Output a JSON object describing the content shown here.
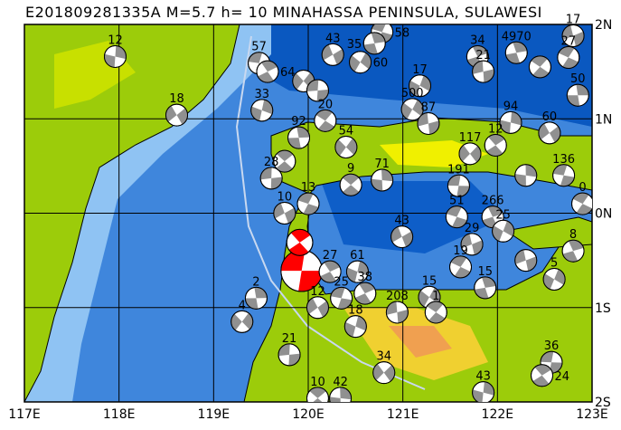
{
  "title": "E201809281335A M=5.7 h= 10 MINAHASSA PENINSULA, SULAWESI",
  "colors": {
    "deep_sea": "#0a58c0",
    "sea": "#3f86dc",
    "shelf": "#8fc3f3",
    "land_low": "#9ccc0a",
    "land_mid": "#f0f000",
    "land_high": "#f0a050",
    "event": "#ff0000",
    "mech": "#909090"
  },
  "axes": {
    "lon_range": [
      117,
      123
    ],
    "lat_range": [
      -2,
      2
    ],
    "lon_labels": [
      "117E",
      "118E",
      "119E",
      "120E",
      "121E",
      "122E",
      "123E"
    ],
    "lat_labels": [
      {
        "lat": 2,
        "label": "2N"
      },
      {
        "lat": 1,
        "label": "1N"
      },
      {
        "lat": 0,
        "label": "0N"
      },
      {
        "lat": -1,
        "label": "1S"
      },
      {
        "lat": -2,
        "label": "2S"
      }
    ]
  },
  "events": [
    {
      "lon": 119.93,
      "lat": -0.61,
      "label": "",
      "main": true,
      "size": 1.9
    },
    {
      "lon": 119.91,
      "lat": -0.31,
      "label": "",
      "main": true,
      "size": 1.2
    },
    {
      "lon": 117.96,
      "lat": 1.66,
      "label": "12"
    },
    {
      "lon": 118.61,
      "lat": 1.04,
      "label": "18"
    },
    {
      "lon": 119.48,
      "lat": 1.59,
      "label": "57"
    },
    {
      "lon": 119.57,
      "lat": 1.5,
      "label": "64"
    },
    {
      "lon": 119.51,
      "lat": 1.09,
      "label": "33"
    },
    {
      "lon": 120.26,
      "lat": 1.68,
      "label": "43"
    },
    {
      "lon": 120.78,
      "lat": 1.92,
      "label": "58"
    },
    {
      "lon": 121.79,
      "lat": 1.66,
      "label": "34"
    },
    {
      "lon": 121.18,
      "lat": 1.35,
      "label": "17"
    },
    {
      "lon": 122.8,
      "lat": 1.88,
      "label": "17"
    },
    {
      "lon": 122.75,
      "lat": 1.65,
      "label": "27"
    },
    {
      "lon": 122.2,
      "lat": 1.7,
      "label": "4970"
    },
    {
      "lon": 121.1,
      "lat": 1.1,
      "label": "500"
    },
    {
      "lon": 121.27,
      "lat": 0.95,
      "label": "87"
    },
    {
      "lon": 120.18,
      "lat": 0.98,
      "label": "20"
    },
    {
      "lon": 119.9,
      "lat": 0.8,
      "label": "92"
    },
    {
      "lon": 120.4,
      "lat": 0.7,
      "label": "54"
    },
    {
      "lon": 119.61,
      "lat": 0.37,
      "label": "28"
    },
    {
      "lon": 120.45,
      "lat": 0.3,
      "label": "9"
    },
    {
      "lon": 120.78,
      "lat": 0.35,
      "label": "71"
    },
    {
      "lon": 121.71,
      "lat": 0.63,
      "label": "117"
    },
    {
      "lon": 121.59,
      "lat": 0.29,
      "label": "191"
    },
    {
      "lon": 121.98,
      "lat": 0.72,
      "label": "12"
    },
    {
      "lon": 122.14,
      "lat": 0.96,
      "label": "94"
    },
    {
      "lon": 122.55,
      "lat": 0.85,
      "label": "60"
    },
    {
      "lon": 122.7,
      "lat": 0.4,
      "label": "136"
    },
    {
      "lon": 120.23,
      "lat": -0.62,
      "label": "27"
    },
    {
      "lon": 120.52,
      "lat": -0.62,
      "label": "61"
    },
    {
      "lon": 120.99,
      "lat": -0.25,
      "label": "43"
    },
    {
      "lon": 121.57,
      "lat": -0.04,
      "label": "51"
    },
    {
      "lon": 121.95,
      "lat": -0.04,
      "label": "266"
    },
    {
      "lon": 122.06,
      "lat": -0.19,
      "label": "25"
    },
    {
      "lon": 121.73,
      "lat": -0.33,
      "label": "29"
    },
    {
      "lon": 121.61,
      "lat": -0.57,
      "label": "19"
    },
    {
      "lon": 121.87,
      "lat": -0.79,
      "label": "15"
    },
    {
      "lon": 121.28,
      "lat": -0.89,
      "label": "15"
    },
    {
      "lon": 120.94,
      "lat": -1.05,
      "label": "208"
    },
    {
      "lon": 121.35,
      "lat": -1.05,
      "label": "1"
    },
    {
      "lon": 119.45,
      "lat": -0.9,
      "label": "2"
    },
    {
      "lon": 119.3,
      "lat": -1.15,
      "label": "4"
    },
    {
      "lon": 119.8,
      "lat": -1.5,
      "label": "21"
    },
    {
      "lon": 120.1,
      "lat": -1.96,
      "label": "10"
    },
    {
      "lon": 120.34,
      "lat": -1.96,
      "label": "42"
    },
    {
      "lon": 120.8,
      "lat": -1.69,
      "label": "34"
    },
    {
      "lon": 122.57,
      "lat": -1.58,
      "label": "36"
    },
    {
      "lon": 122.47,
      "lat": -1.72,
      "label": "24"
    },
    {
      "lon": 121.85,
      "lat": -1.9,
      "label": "43"
    },
    {
      "lon": 120.1,
      "lat": -1.0,
      "label": "12"
    },
    {
      "lon": 120.35,
      "lat": -0.9,
      "label": "25"
    },
    {
      "lon": 120.6,
      "lat": -0.85,
      "label": "38"
    },
    {
      "lon": 120.5,
      "lat": -1.2,
      "label": "18"
    },
    {
      "lon": 119.75,
      "lat": 0.0,
      "label": "10"
    },
    {
      "lon": 120.0,
      "lat": 0.1,
      "label": "13"
    },
    {
      "lon": 122.8,
      "lat": -0.4,
      "label": "8"
    },
    {
      "lon": 122.6,
      "lat": -0.7,
      "label": "5"
    },
    {
      "lon": 122.3,
      "lat": -0.5,
      "label": ""
    },
    {
      "lon": 122.9,
      "lat": 0.1,
      "label": "0"
    },
    {
      "lon": 120.7,
      "lat": 1.8,
      "label": "35"
    },
    {
      "lon": 120.55,
      "lat": 1.6,
      "label": "60"
    },
    {
      "lon": 121.85,
      "lat": 1.5,
      "label": "21"
    },
    {
      "lon": 122.45,
      "lat": 1.55,
      "label": ""
    },
    {
      "lon": 122.85,
      "lat": 1.25,
      "label": "50"
    },
    {
      "lon": 119.95,
      "lat": 1.4,
      "label": ""
    },
    {
      "lon": 120.1,
      "lat": 1.3,
      "label": ""
    },
    {
      "lon": 119.75,
      "lat": 0.55,
      "label": ""
    },
    {
      "lon": 122.3,
      "lat": 0.4,
      "label": ""
    }
  ]
}
